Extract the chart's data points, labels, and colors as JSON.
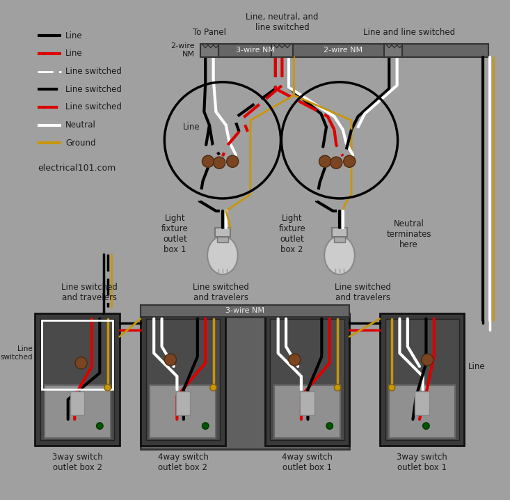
{
  "bg_color": "#a0a0a0",
  "wire_colors": {
    "black": "#000000",
    "red": "#dd0000",
    "white": "#ffffff",
    "ground": "#c8960a",
    "brown": "#7a4520"
  },
  "text_color": "#1a1a1a",
  "box_dark": "#3a3a3a",
  "box_mid": "#555555",
  "box_light": "#888888",
  "switch_plate": "#909090",
  "connector_color": "#777777",
  "website": "electrical101.com",
  "legend": [
    {
      "label": "Line",
      "color": "#000000",
      "ls": "solid",
      "lw": 3
    },
    {
      "label": "Line",
      "color": "#dd0000",
      "ls": "solid",
      "lw": 3
    },
    {
      "label": "Line switched",
      "color": "#ffffff",
      "ls": "dashdot",
      "lw": 2
    },
    {
      "label": "Line switched",
      "color": "#000000",
      "ls": "dashed",
      "lw": 3
    },
    {
      "label": "Line switched",
      "color": "#dd0000",
      "ls": "dashed",
      "lw": 3
    },
    {
      "label": "Neutral",
      "color": "#ffffff",
      "ls": "solid",
      "lw": 3
    },
    {
      "label": "Ground",
      "color": "#c8960a",
      "ls": "solid",
      "lw": 3
    }
  ],
  "top_labels": {
    "to_panel": "To Panel",
    "nm_2wire_left": "2-wire\nNM",
    "nm_3wire": "3-wire NM",
    "label_center": "Line, neutral, and\nline switched",
    "nm_2wire_right": "2-wire NM",
    "label_right": "Line and line switched",
    "fixture1": "Light\nfixture\noutlet\nbox 1",
    "fixture2": "Light\nfixture\noutlet\nbox 2",
    "neutral_term": "Neutral\nterminates\nhere",
    "line_label": "Line"
  },
  "bottom_labels": {
    "sw_travel_left": "Line switched\nand travelers",
    "sw_travel_mid": "Line switched\nand travelers",
    "sw_travel_right": "Line switched\nand travelers",
    "nm_3wire_bot": "3-wire NM",
    "line_switched": "Line\nswitched",
    "line_right": "Line",
    "box1_label": "3way switch\noutlet box 2",
    "box2_label": "4way switch\noutlet box 2",
    "box3_label": "4way switch\noutlet box 1",
    "box4_label": "3way switch\noutlet box 1"
  }
}
